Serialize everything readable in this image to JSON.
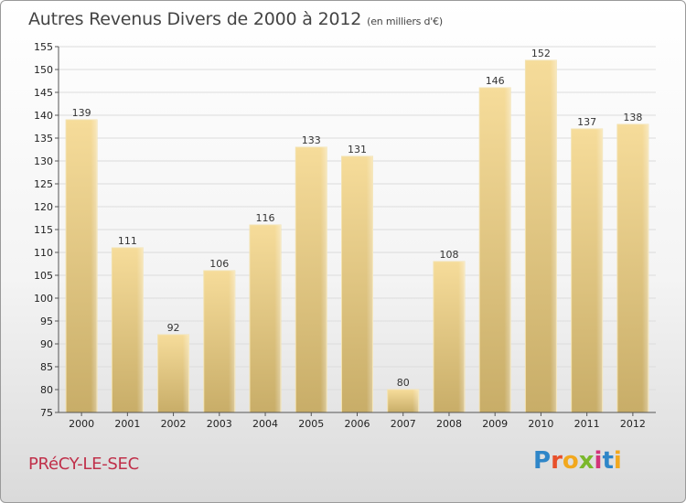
{
  "chart_data": {
    "type": "bar",
    "title": "Autres Revenus Divers de 2000 à 2012",
    "subtitle": "(en milliers d'€)",
    "categories": [
      "2000",
      "2001",
      "2002",
      "2003",
      "2004",
      "2005",
      "2006",
      "2007",
      "2008",
      "2009",
      "2010",
      "2011",
      "2012"
    ],
    "values": [
      139,
      111,
      92,
      106,
      116,
      133,
      131,
      80,
      108,
      146,
      152,
      137,
      138
    ],
    "ylim": [
      75,
      155
    ],
    "yticks": [
      75,
      80,
      85,
      90,
      95,
      100,
      105,
      110,
      115,
      120,
      125,
      130,
      135,
      140,
      145,
      150,
      155
    ],
    "grid": true,
    "bar_color": "#e6ca85"
  },
  "footer": {
    "commune": "PRéCY-LE-SEC",
    "logo_letters": [
      {
        "ch": "P",
        "color": "#2f86c8"
      },
      {
        "ch": "r",
        "color": "#e8502a"
      },
      {
        "ch": "o",
        "color": "#f2a81d"
      },
      {
        "ch": "x",
        "color": "#7ab82c"
      },
      {
        "ch": "i",
        "color": "#d2337a"
      },
      {
        "ch": "t",
        "color": "#2f86c8"
      },
      {
        "ch": "i",
        "color": "#f2a81d"
      }
    ]
  }
}
